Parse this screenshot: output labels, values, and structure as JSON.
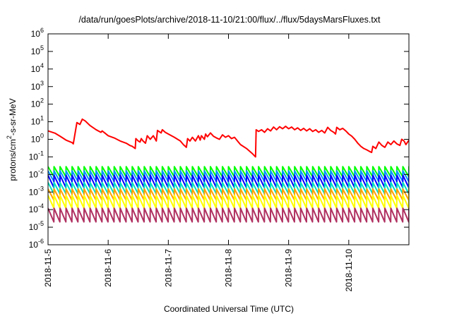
{
  "chart_data": {
    "type": "line",
    "title": "/data/run/goesPlots/archive/2018-11-10/21:00/flux/../flux/5daysMarsFluxes.txt",
    "xlabel": "Coordinated Universal Time (UTC)",
    "ylabel": "protons/cm²-s-sr-MeV",
    "ylabel_parts": {
      "main": "protons/cm",
      "sup": "2",
      "rest": "-s-sr-MeV"
    },
    "yscale": "log",
    "ylim": [
      1e-06,
      1000000.0
    ],
    "xlim_days": [
      0,
      6.0
    ],
    "grid": false,
    "legend": "none",
    "x_ticks": [
      {
        "day": 0,
        "label": "2018-11-5"
      },
      {
        "day": 1,
        "label": "2018-11-6"
      },
      {
        "day": 2,
        "label": "2018-11-7"
      },
      {
        "day": 3,
        "label": "2018-11-8"
      },
      {
        "day": 4,
        "label": "2018-11-9"
      },
      {
        "day": 5,
        "label": "2018-11-10"
      }
    ],
    "y_ticks": [
      {
        "exp": -6,
        "base": "10",
        "sup": "-6"
      },
      {
        "exp": -5,
        "base": "10",
        "sup": "-5"
      },
      {
        "exp": -4,
        "base": "10",
        "sup": "-4"
      },
      {
        "exp": -3,
        "base": "10",
        "sup": "-3"
      },
      {
        "exp": -2,
        "base": "10",
        "sup": "-2"
      },
      {
        "exp": -1,
        "base": "10",
        "sup": "-1"
      },
      {
        "exp": 0,
        "base": "10",
        "sup": "0"
      },
      {
        "exp": 1,
        "base": "10",
        "sup": "1"
      },
      {
        "exp": 2,
        "base": "10",
        "sup": "2"
      },
      {
        "exp": 3,
        "base": "10",
        "sup": "3"
      },
      {
        "exp": 4,
        "base": "10",
        "sup": "4"
      },
      {
        "exp": 5,
        "base": "10",
        "sup": "5"
      },
      {
        "exp": 6,
        "base": "10",
        "sup": "6"
      }
    ],
    "series": [
      {
        "color": "#ff0000",
        "points": [
          [
            0.0,
            3.0
          ],
          [
            0.12,
            2.2
          ],
          [
            0.2,
            1.5
          ],
          [
            0.3,
            0.9
          ],
          [
            0.4,
            0.65
          ],
          [
            0.42,
            0.55
          ],
          [
            0.48,
            9.0
          ],
          [
            0.53,
            7.0
          ],
          [
            0.57,
            14.0
          ],
          [
            0.62,
            11.0
          ],
          [
            0.7,
            6.0
          ],
          [
            0.8,
            3.5
          ],
          [
            0.88,
            2.5
          ],
          [
            0.9,
            3.0
          ],
          [
            0.95,
            2.2
          ],
          [
            1.0,
            1.6
          ],
          [
            1.1,
            1.2
          ],
          [
            1.2,
            0.8
          ],
          [
            1.3,
            0.6
          ],
          [
            1.36,
            0.45
          ],
          [
            1.4,
            0.4
          ],
          [
            1.45,
            0.3
          ],
          [
            1.46,
            1.1
          ],
          [
            1.5,
            0.8
          ],
          [
            1.53,
            0.7
          ],
          [
            1.55,
            1.1
          ],
          [
            1.58,
            0.8
          ],
          [
            1.62,
            0.6
          ],
          [
            1.65,
            1.6
          ],
          [
            1.7,
            1.0
          ],
          [
            1.75,
            1.6
          ],
          [
            1.8,
            0.8
          ],
          [
            1.82,
            3.2
          ],
          [
            1.88,
            2.3
          ],
          [
            1.9,
            3.5
          ],
          [
            1.95,
            2.5
          ],
          [
            2.0,
            2.0
          ],
          [
            2.1,
            1.3
          ],
          [
            2.2,
            0.8
          ],
          [
            2.25,
            0.5
          ],
          [
            2.3,
            0.35
          ],
          [
            2.32,
            1.1
          ],
          [
            2.36,
            0.8
          ],
          [
            2.4,
            1.3
          ],
          [
            2.45,
            0.8
          ],
          [
            2.5,
            1.6
          ],
          [
            2.53,
            0.9
          ],
          [
            2.55,
            1.6
          ],
          [
            2.6,
            1.0
          ],
          [
            2.62,
            2.0
          ],
          [
            2.65,
            1.4
          ],
          [
            2.7,
            2.3
          ],
          [
            2.75,
            1.5
          ],
          [
            2.8,
            1.2
          ],
          [
            2.85,
            1.0
          ],
          [
            2.9,
            1.8
          ],
          [
            2.95,
            1.3
          ],
          [
            3.0,
            1.6
          ],
          [
            3.05,
            1.1
          ],
          [
            3.1,
            1.3
          ],
          [
            3.15,
            0.8
          ],
          [
            3.2,
            0.5
          ],
          [
            3.3,
            0.3
          ],
          [
            3.4,
            0.15
          ],
          [
            3.45,
            0.1
          ],
          [
            3.46,
            3.5
          ],
          [
            3.5,
            2.8
          ],
          [
            3.55,
            3.5
          ],
          [
            3.6,
            2.5
          ],
          [
            3.65,
            4.0
          ],
          [
            3.7,
            3.0
          ],
          [
            3.75,
            5.0
          ],
          [
            3.8,
            3.5
          ],
          [
            3.85,
            5.2
          ],
          [
            3.9,
            4.0
          ],
          [
            3.95,
            5.5
          ],
          [
            4.0,
            4.0
          ],
          [
            4.05,
            5.0
          ],
          [
            4.1,
            3.5
          ],
          [
            4.15,
            4.5
          ],
          [
            4.2,
            3.2
          ],
          [
            4.25,
            4.2
          ],
          [
            4.3,
            3.0
          ],
          [
            4.35,
            4.0
          ],
          [
            4.4,
            2.8
          ],
          [
            4.45,
            3.5
          ],
          [
            4.5,
            2.5
          ],
          [
            4.55,
            3.2
          ],
          [
            4.6,
            2.3
          ],
          [
            4.65,
            4.8
          ],
          [
            4.7,
            3.2
          ],
          [
            4.75,
            2.5
          ],
          [
            4.78,
            2.0
          ],
          [
            4.8,
            4.8
          ],
          [
            4.85,
            3.5
          ],
          [
            4.9,
            4.2
          ],
          [
            4.95,
            3.0
          ],
          [
            5.0,
            2.0
          ],
          [
            5.05,
            1.5
          ],
          [
            5.1,
            1.0
          ],
          [
            5.15,
            0.6
          ],
          [
            5.2,
            0.4
          ],
          [
            5.25,
            0.3
          ],
          [
            5.3,
            0.25
          ],
          [
            5.35,
            0.2
          ],
          [
            5.38,
            0.18
          ],
          [
            5.4,
            0.4
          ],
          [
            5.45,
            0.3
          ],
          [
            5.5,
            0.7
          ],
          [
            5.55,
            0.45
          ],
          [
            5.6,
            0.35
          ],
          [
            5.65,
            0.7
          ],
          [
            5.7,
            0.5
          ],
          [
            5.75,
            0.8
          ],
          [
            5.8,
            0.55
          ],
          [
            5.85,
            0.45
          ],
          [
            5.88,
            1.0
          ],
          [
            5.92,
            0.8
          ],
          [
            5.95,
            0.5
          ],
          [
            6.0,
            0.9
          ]
        ]
      },
      {
        "color": "#00ff00",
        "sawtooth": {
          "period_days": 0.1,
          "high": 0.028,
          "low": 0.0075
        }
      },
      {
        "color": "#0096ff",
        "sawtooth": {
          "period_days": 0.1,
          "high": 0.016,
          "low": 0.004
        }
      },
      {
        "color": "#0000ff",
        "sawtooth": {
          "period_days": 0.1,
          "high": 0.009,
          "low": 0.0018
        }
      },
      {
        "color": "#00e0c0",
        "sawtooth": {
          "period_days": 0.1,
          "high": 0.0035,
          "low": 0.0008
        }
      },
      {
        "color": "#ffa000",
        "sawtooth": {
          "period_days": 0.1,
          "high": 0.0015,
          "low": 0.00035
        }
      },
      {
        "color": "#ffff00",
        "sawtooth": {
          "period_days": 0.1,
          "high": 0.00065,
          "low": 0.00012
        }
      },
      {
        "color": "#b03060",
        "sawtooth": {
          "period_days": 0.1,
          "high": 0.00012,
          "low": 2e-05
        }
      }
    ]
  }
}
